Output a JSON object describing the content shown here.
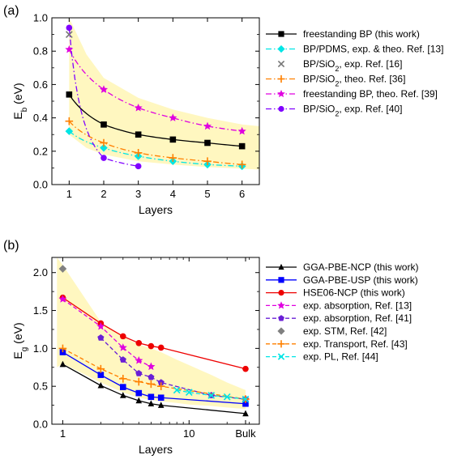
{
  "chart_data": [
    {
      "type": "line",
      "panel_label": "(a)",
      "xlabel": "Layers",
      "ylabel_main": "E",
      "ylabel_sub": "b",
      "ylabel_unit": " (eV)",
      "xlim": [
        0.5,
        6.5
      ],
      "ylim": [
        0,
        1.0
      ],
      "xticks": [
        1,
        2,
        3,
        4,
        5,
        6
      ],
      "yticks": [
        0.0,
        0.2,
        0.4,
        0.6,
        0.8,
        1.0
      ],
      "ytick_labels": [
        "0.0",
        "0.2",
        "0.4",
        "0.6",
        "0.8",
        "1.0"
      ],
      "shaded_band": {
        "color": "#fff7c0",
        "x": [
          1,
          1.5,
          2,
          3,
          4,
          5,
          6,
          6.5
        ],
        "upper": [
          1.0,
          0.78,
          0.64,
          0.52,
          0.45,
          0.4,
          0.36,
          0.35
        ],
        "lower": [
          0.3,
          0.22,
          0.18,
          0.14,
          0.12,
          0.105,
          0.095,
          0.09
        ]
      },
      "series": [
        {
          "legend": "freestanding BP (this work)",
          "color": "#000000",
          "marker": "square",
          "dash": "solid",
          "x": [
            1,
            2,
            3,
            4,
            5,
            6
          ],
          "y": [
            0.54,
            0.36,
            0.3,
            0.27,
            0.25,
            0.23
          ]
        },
        {
          "legend": "BP/PDMS, exp. & theo. Ref. [13]",
          "color": "#00e5e5",
          "marker": "diamond",
          "dash": "dashdot",
          "x": [
            1,
            2,
            3,
            4,
            5,
            6
          ],
          "y": [
            0.32,
            0.22,
            0.17,
            0.14,
            0.12,
            0.11
          ]
        },
        {
          "legend_pre": "BP/SiO",
          "legend_sub": "2",
          "legend_post": ", exp. Ref. [16]",
          "color": "#777777",
          "marker": "cross",
          "dash": "none",
          "x": [
            1
          ],
          "y": [
            0.9
          ]
        },
        {
          "legend_pre": "BP/SiO",
          "legend_sub": "2",
          "legend_post": ", theo. Ref. [36]",
          "color": "#ff8000",
          "marker": "plus",
          "dash": "dashdot",
          "x": [
            1,
            2,
            3,
            4,
            5,
            6
          ],
          "y": [
            0.38,
            0.25,
            0.19,
            0.16,
            0.14,
            0.12
          ]
        },
        {
          "legend": "freestanding BP, theo. Ref. [39]",
          "color": "#e000e0",
          "marker": "star",
          "dash": "dashdot",
          "x": [
            1,
            2,
            3,
            4,
            5,
            6
          ],
          "y": [
            0.81,
            0.57,
            0.46,
            0.4,
            0.35,
            0.32
          ]
        },
        {
          "legend_pre": "BP/SiO",
          "legend_sub": "2",
          "legend_post": ", exp. Ref. [40]",
          "color": "#8000ff",
          "marker": "circle",
          "dash": "dashdot",
          "x": [
            1,
            2,
            3
          ],
          "y": [
            0.94,
            0.16,
            0.11
          ]
        }
      ]
    },
    {
      "type": "line",
      "panel_label": "(b)",
      "xlabel": "Layers",
      "ylabel_main": "E",
      "ylabel_sub": "g",
      "ylabel_unit": " (eV)",
      "xscale": "log",
      "xlim": [
        0.82,
        36
      ],
      "ylim": [
        0,
        2.2
      ],
      "xticks": [
        1,
        10,
        28
      ],
      "xtick_labels": [
        "1",
        "10",
        "Bulk"
      ],
      "yticks": [
        0.0,
        0.5,
        1.0,
        1.5,
        2.0
      ],
      "ytick_labels": [
        "0.0",
        "0.5",
        "1.0",
        "1.5",
        "2.0"
      ],
      "shaded_band": {
        "color": "#fff7c0",
        "x": [
          0.9,
          1,
          2,
          3,
          4,
          5,
          6,
          8,
          10,
          15,
          20,
          28
        ],
        "upper": [
          2.2,
          2.1,
          1.35,
          1.15,
          1.05,
          1.0,
          0.95,
          0.85,
          0.78,
          0.65,
          0.55,
          0.45
        ],
        "lower": [
          0.75,
          0.8,
          0.55,
          0.42,
          0.35,
          0.32,
          0.3,
          0.28,
          0.26,
          0.24,
          0.22,
          0.2
        ]
      },
      "series": [
        {
          "legend": "GGA-PBE-NCP (this work)",
          "color": "#000000",
          "marker": "triangle",
          "dash": "solid",
          "x": [
            1,
            2,
            3,
            4,
            5,
            6,
            28
          ],
          "y": [
            0.79,
            0.51,
            0.38,
            0.31,
            0.27,
            0.25,
            0.14
          ]
        },
        {
          "legend": "GGA-PBE-USP (this work)",
          "color": "#0000ff",
          "marker": "square",
          "dash": "solid",
          "x": [
            1,
            2,
            3,
            4,
            5,
            6,
            28
          ],
          "y": [
            0.95,
            0.65,
            0.49,
            0.41,
            0.36,
            0.35,
            0.27
          ]
        },
        {
          "legend": "HSE06-NCP (this work)",
          "color": "#ee0000",
          "marker": "circle",
          "dash": "solid",
          "x": [
            1,
            2,
            3,
            4,
            5,
            6,
            28
          ],
          "y": [
            1.67,
            1.33,
            1.16,
            1.07,
            1.03,
            1.01,
            0.73
          ]
        },
        {
          "legend": "exp. absorption, Ref. [13]",
          "color": "#e000e0",
          "marker": "star",
          "dash": "dashed",
          "x": [
            1,
            2,
            3,
            4,
            5
          ],
          "y": [
            1.65,
            1.29,
            1.01,
            0.84,
            0.76
          ]
        },
        {
          "legend": "exp. absorption, Ref. [41]",
          "color": "#6a1fd6",
          "marker": "pentagon",
          "dash": "dashed",
          "x": [
            2,
            3,
            4,
            5,
            6,
            15,
            28
          ],
          "y": [
            1.14,
            0.85,
            0.67,
            0.62,
            0.55,
            0.38,
            0.33
          ]
        },
        {
          "legend": "exp. STM, Ref. [42]",
          "color": "#808080",
          "marker": "diamond",
          "dash": "none",
          "x": [
            1
          ],
          "y": [
            2.05
          ]
        },
        {
          "legend": "exp. Transport, Ref. [43]",
          "color": "#ff8000",
          "marker": "plus",
          "dash": "dashed",
          "x": [
            1,
            2,
            3,
            4,
            5,
            6,
            28
          ],
          "y": [
            1.0,
            0.73,
            0.6,
            0.56,
            0.53,
            0.5,
            0.33
          ]
        },
        {
          "legend": "exp. PL, Ref. [44]",
          "color": "#00e5e5",
          "marker": "cross",
          "dash": "dashed",
          "x": [
            8,
            10,
            15,
            20,
            28
          ],
          "y": [
            0.45,
            0.42,
            0.38,
            0.36,
            0.33
          ]
        }
      ]
    }
  ]
}
